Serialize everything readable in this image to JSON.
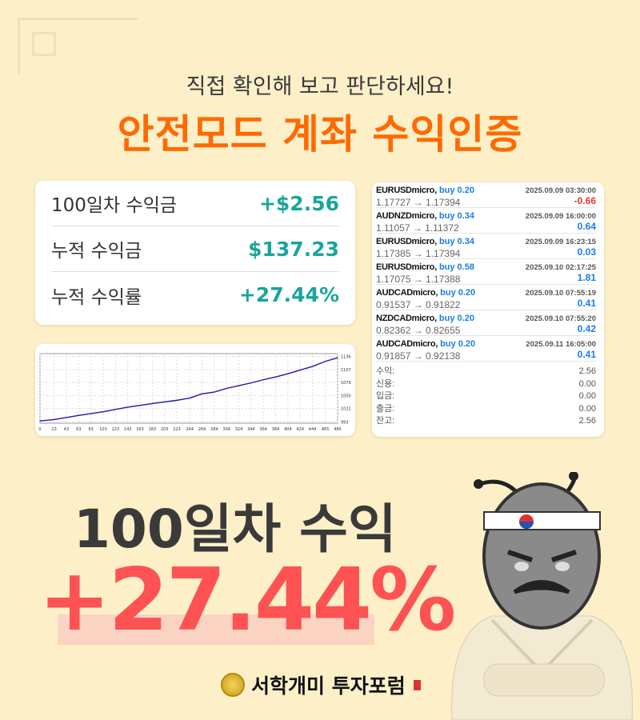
{
  "header": {
    "subtitle": "직접 확인해 보고 판단하세요!",
    "title": "안전모드 계좌 수익인증"
  },
  "stats": [
    {
      "label": "100일차 수익금",
      "value": "+$2.56"
    },
    {
      "label": "누적 수익금",
      "value": "$137.23"
    },
    {
      "label": "누적 수익률",
      "value": "+27.44%"
    }
  ],
  "trades": [
    {
      "symbol": "EURUSDmicro,",
      "side": "buy 0.20",
      "time": "2025.09.09 03:30:00",
      "prices": "1.17727 → 1.17394",
      "pl": "-0.66"
    },
    {
      "symbol": "AUDNZDmicro,",
      "side": "buy 0.34",
      "time": "2025.09.09 16:00:00",
      "prices": "1.11057 → 1.11372",
      "pl": "0.64"
    },
    {
      "symbol": "EURUSDmicro,",
      "side": "buy 0.34",
      "time": "2025.09.09 16:23:15",
      "prices": "1.17385 → 1.17394",
      "pl": "0.03"
    },
    {
      "symbol": "EURUSDmicro,",
      "side": "buy 0.58",
      "time": "2025.09.10 02:17:25",
      "prices": "1.17075 → 1.17388",
      "pl": "1.81"
    },
    {
      "symbol": "AUDCADmicro,",
      "side": "buy 0.20",
      "time": "2025.09.10 07:55:19",
      "prices": "0.91537 → 0.91822",
      "pl": "0.41"
    },
    {
      "symbol": "NZDCADmicro,",
      "side": "buy 0.20",
      "time": "2025.09.10 07:55:20",
      "prices": "0.82362 → 0.82655",
      "pl": "0.42"
    },
    {
      "symbol": "AUDCADmicro,",
      "side": "buy 0.20",
      "time": "2025.09.11 16:05:00",
      "prices": "0.91857 → 0.92138",
      "pl": "0.41"
    }
  ],
  "summary": [
    {
      "label": "수익:",
      "value": "2.56"
    },
    {
      "label": "신용:",
      "value": "0.00"
    },
    {
      "label": "입금:",
      "value": "0.00"
    },
    {
      "label": "출금:",
      "value": "0.00"
    },
    {
      "label": "잔고:",
      "value": "2.56"
    }
  ],
  "headline": {
    "line1": "100일차 수익",
    "line2": "+27.44%"
  },
  "logo": {
    "text": "서학개미 투자포럼"
  },
  "colors": {
    "accent": "#ff6a00",
    "teal": "#1aa59b",
    "red": "#ff5252",
    "line": "#1a1aa8"
  },
  "chart_data": {
    "type": "line",
    "xticks": [
      "0",
      "23",
      "43",
      "63",
      "83",
      "103",
      "123",
      "143",
      "163",
      "183",
      "203",
      "223",
      "244",
      "264",
      "284",
      "304",
      "324",
      "344",
      "364",
      "384",
      "404",
      "424",
      "444",
      "465",
      "485"
    ],
    "yticks": [
      "1136",
      "1107",
      "1079",
      "1050",
      "1022",
      "993"
    ],
    "xlim": [
      0,
      485
    ],
    "ylim": [
      990,
      1142
    ],
    "grid": true,
    "x": [
      0,
      23,
      63,
      103,
      143,
      183,
      223,
      244,
      264,
      284,
      304,
      324,
      344,
      364,
      384,
      404,
      424,
      444,
      465,
      485
    ],
    "y": [
      995,
      998,
      1007,
      1015,
      1025,
      1033,
      1040,
      1045,
      1054,
      1058,
      1066,
      1072,
      1078,
      1085,
      1091,
      1098,
      1106,
      1114,
      1125,
      1133
    ]
  }
}
